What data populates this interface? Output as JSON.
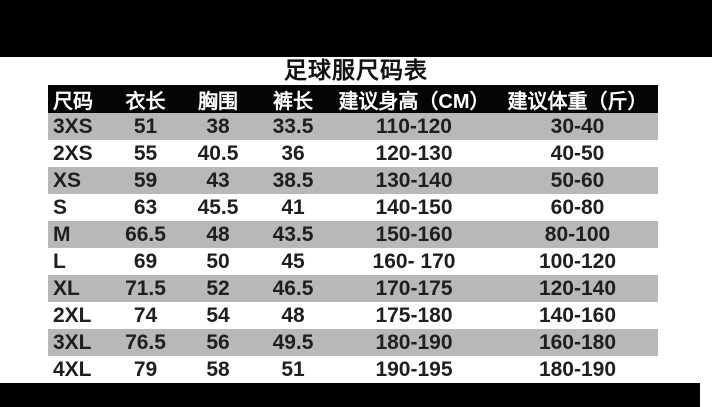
{
  "page": {
    "title": "足球服尺码表"
  },
  "table": {
    "columns": [
      "尺码",
      "衣长",
      "胸围",
      "裤长",
      "建议身高（CM）",
      "建议体重（斤）"
    ],
    "rows": [
      [
        "3XS",
        "51",
        "38",
        "33.5",
        "110-120",
        "30-40"
      ],
      [
        "2XS",
        "55",
        "40.5",
        "36",
        "120-130",
        "40-50"
      ],
      [
        "XS",
        "59",
        "43",
        "38.5",
        "130-140",
        "50-60"
      ],
      [
        "S",
        "63",
        "45.5",
        "41",
        "140-150",
        "60-80"
      ],
      [
        "M",
        "66.5",
        "48",
        "43.5",
        "150-160",
        "80-100"
      ],
      [
        "L",
        "69",
        "50",
        "45",
        "160- 170",
        "100-120"
      ],
      [
        "XL",
        "71.5",
        "52",
        "46.5",
        "170-175",
        "120-140"
      ],
      [
        "2XL",
        "74",
        "54",
        "48",
        "175-180",
        "140-160"
      ],
      [
        "3XL",
        "76.5",
        "56",
        "49.5",
        "180-190",
        "160-180"
      ],
      [
        "4XL",
        "79",
        "58",
        "51",
        "190-195",
        "180-190"
      ]
    ]
  },
  "colors": {
    "bar_color": "#000000",
    "header_bg": "#050505",
    "header_text": "#ffffff",
    "row_bg": "#ffffff",
    "row_alt_bg": "#b8b8b8",
    "text_color": "#1f1f1f"
  },
  "chart_data": {
    "type": "table",
    "title": "足球服尺码表",
    "columns": [
      "尺码",
      "衣长",
      "胸围",
      "裤长",
      "建议身高（CM）",
      "建议体重（斤）"
    ],
    "rows": [
      [
        "3XS",
        "51",
        "38",
        "33.5",
        "110-120",
        "30-40"
      ],
      [
        "2XS",
        "55",
        "40.5",
        "36",
        "120-130",
        "40-50"
      ],
      [
        "XS",
        "59",
        "43",
        "38.5",
        "130-140",
        "50-60"
      ],
      [
        "S",
        "63",
        "45.5",
        "41",
        "140-150",
        "60-80"
      ],
      [
        "M",
        "66.5",
        "48",
        "43.5",
        "150-160",
        "80-100"
      ],
      [
        "L",
        "69",
        "50",
        "45",
        "160- 170",
        "100-120"
      ],
      [
        "XL",
        "71.5",
        "52",
        "46.5",
        "170-175",
        "120-140"
      ],
      [
        "2XL",
        "74",
        "54",
        "48",
        "175-180",
        "140-160"
      ],
      [
        "3XL",
        "76.5",
        "56",
        "49.5",
        "180-190",
        "160-180"
      ],
      [
        "4XL",
        "79",
        "58",
        "51",
        "190-195",
        "180-190"
      ]
    ],
    "layout_hints": {
      "alternating_row_shading": true,
      "header_style": "white-on-black",
      "first_column_align": "left",
      "other_columns_align": "center"
    }
  }
}
